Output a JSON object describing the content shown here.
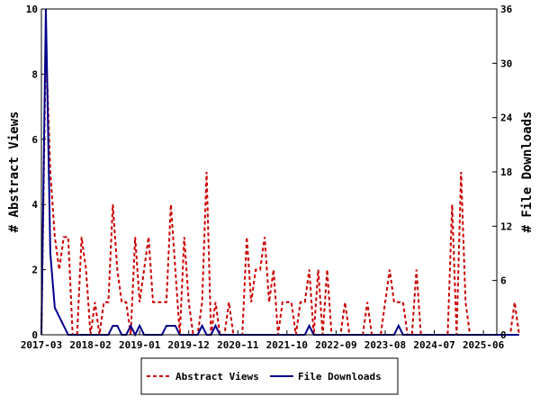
{
  "chart_data": {
    "type": "line",
    "xlabel": "",
    "ylabel_left": "# Abstract Views",
    "ylabel_right": "# File Downloads",
    "ylim_left": [
      0,
      10
    ],
    "ylim_right": [
      0,
      36
    ],
    "left_ticks": [
      "0",
      "2",
      "4",
      "6",
      "8",
      "10"
    ],
    "right_ticks": [
      "0",
      "6",
      "12",
      "18",
      "24",
      "30",
      "36"
    ],
    "x_tick_labels": [
      "2017-03",
      "2018-02",
      "2019-01",
      "2019-12",
      "2020-11",
      "2021-10",
      "2022-09",
      "2023-08",
      "2024-07",
      "2025-06"
    ],
    "x_start": "2017-03",
    "x_end": "2025-09",
    "legend_position": "bottom",
    "series": [
      {
        "name": "Abstract Views",
        "axis": "left",
        "color": "#cc0000",
        "style": "dashed",
        "values": [
          0,
          9,
          5,
          3,
          2,
          3,
          3,
          0,
          0,
          3,
          2,
          0,
          1,
          0,
          1,
          1,
          4,
          2,
          1,
          1,
          0,
          3,
          1,
          2,
          3,
          1,
          1,
          1,
          1,
          4,
          2,
          0,
          3,
          1,
          0,
          0,
          1,
          5,
          0,
          1,
          0,
          0,
          1,
          0,
          0,
          0,
          3,
          1,
          2,
          2,
          3,
          1,
          2,
          0,
          1,
          1,
          1,
          0,
          1,
          1,
          2,
          0,
          2,
          0,
          2,
          0,
          0,
          0,
          1,
          0,
          0,
          0,
          0,
          1,
          0,
          0,
          0,
          1,
          2,
          1,
          1,
          1,
          0,
          0,
          2,
          0,
          0,
          0,
          0,
          0,
          0,
          0,
          4,
          0,
          5,
          1,
          0,
          0,
          0,
          0,
          0,
          0,
          0,
          0,
          0,
          0,
          1,
          0
        ]
      },
      {
        "name": "File Downloads",
        "axis": "right",
        "color": "#00008b",
        "style": "solid",
        "values": [
          0,
          36,
          9,
          3,
          2,
          1,
          0,
          0,
          0,
          0,
          0,
          0,
          0,
          0,
          0,
          0,
          1,
          1,
          0,
          0,
          1,
          0,
          1,
          0,
          0,
          0,
          0,
          0,
          1,
          1,
          1,
          0,
          0,
          0,
          0,
          0,
          1,
          0,
          0,
          1,
          0,
          0,
          0,
          0,
          0,
          0,
          0,
          0,
          0,
          0,
          0,
          0,
          0,
          0,
          0,
          0,
          0,
          0,
          0,
          0,
          1,
          0,
          0,
          0,
          0,
          0,
          0,
          0,
          0,
          0,
          0,
          0,
          0,
          0,
          0,
          0,
          0,
          0,
          0,
          0,
          1,
          0,
          0,
          0,
          0,
          0,
          0,
          0,
          0,
          0,
          0,
          0,
          0,
          0,
          0,
          0,
          0,
          0,
          0,
          0,
          0,
          0,
          0,
          0,
          0,
          0,
          0,
          0
        ]
      }
    ]
  }
}
